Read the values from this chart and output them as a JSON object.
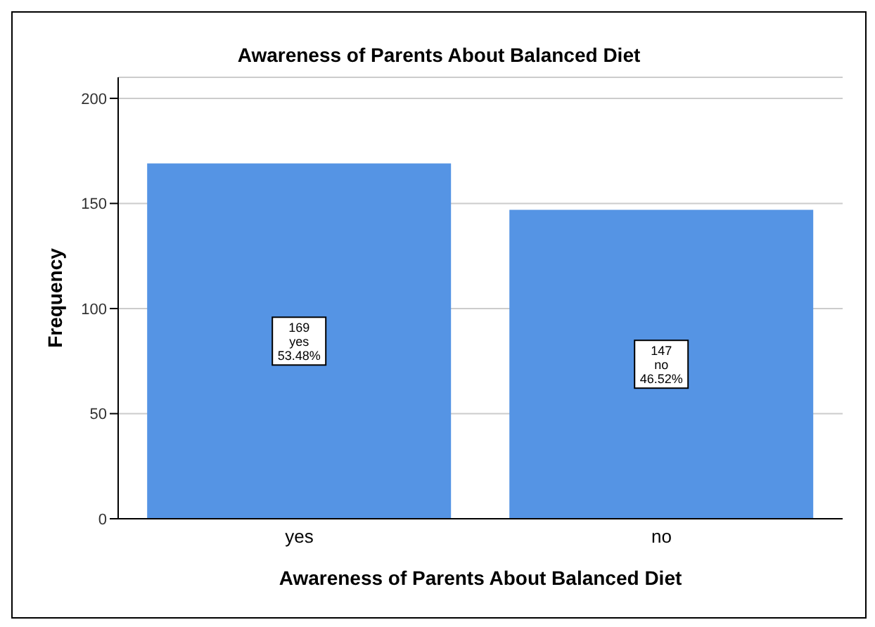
{
  "chart_data": {
    "type": "bar",
    "title": "Awareness of Parents About Balanced Diet",
    "xlabel": "Awareness of Parents About Balanced Diet",
    "ylabel": "Frequency",
    "categories": [
      "yes",
      "no"
    ],
    "values": [
      169,
      147
    ],
    "color": "#5594e4",
    "value_labels": [
      "169\nyes\n53.48%",
      "147\nno\n46.52%"
    ],
    "ylim": [
      0,
      210
    ],
    "yticks": [
      0,
      50,
      100,
      150,
      200
    ],
    "grid": "y"
  }
}
